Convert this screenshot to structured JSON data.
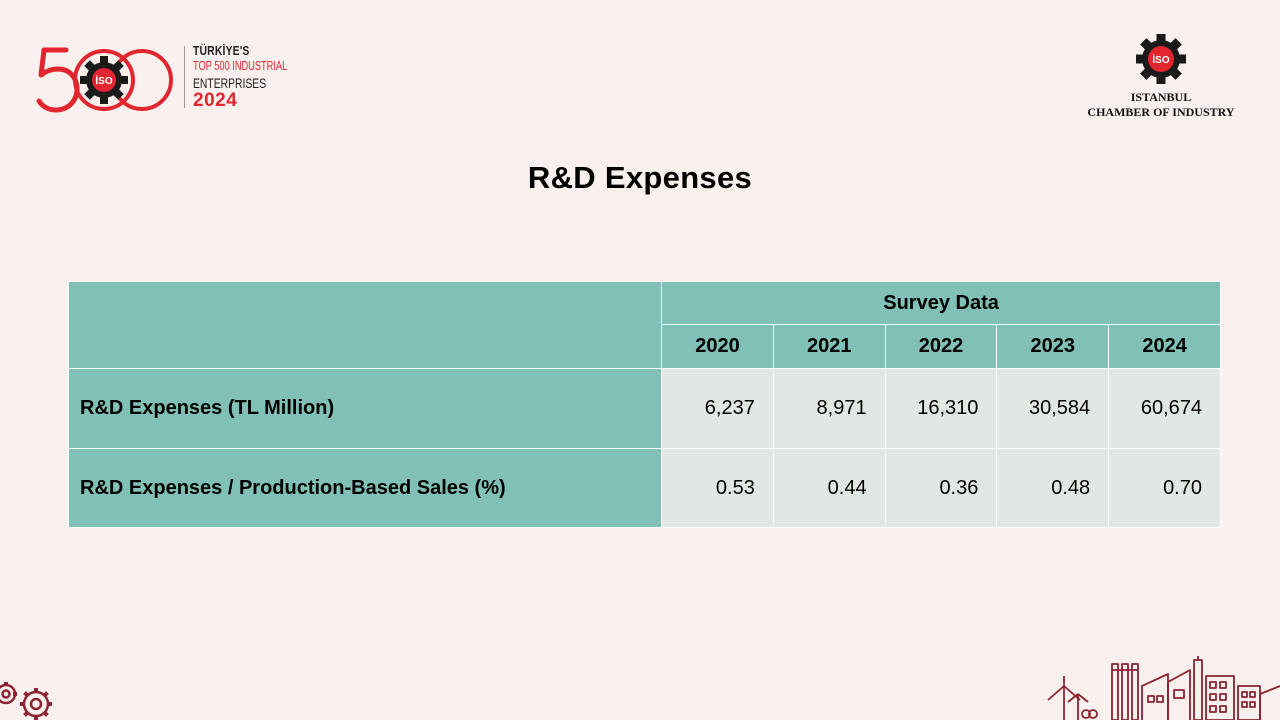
{
  "logo_500": {
    "numeral": "500",
    "badge_text": "İSO",
    "line1": "TÜRKİYE'S",
    "line2": "TOP 500 INDUSTRIAL",
    "line3": "ENTERPRISES",
    "year": "2024"
  },
  "iso_logo": {
    "badge_text": "İSO",
    "org_line1": "ISTANBUL",
    "org_line2": "CHAMBER OF INDUSTRY"
  },
  "title": "R&D Expenses",
  "table": {
    "group_header": "Survey Data",
    "years": [
      "2020",
      "2021",
      "2022",
      "2023",
      "2024"
    ],
    "rows": [
      {
        "label": "R&D Expenses (TL Million)",
        "values": [
          "6,237",
          "8,971",
          "16,310",
          "30,584",
          "60,674"
        ]
      },
      {
        "label": "R&D Expenses / Production-Based Sales (%)",
        "values": [
          "0.53",
          "0.44",
          "0.36",
          "0.48",
          "0.70"
        ]
      }
    ]
  },
  "colors": {
    "background": "#FAF0EE",
    "header_teal": "#80C0B7",
    "value_cell": "#E1E7E3",
    "brand_red": "#E1262F",
    "decoration": "#8B2332"
  },
  "decorations": {
    "bottom_left": "gears-icon",
    "bottom_right": "factory-skyline-icon"
  }
}
